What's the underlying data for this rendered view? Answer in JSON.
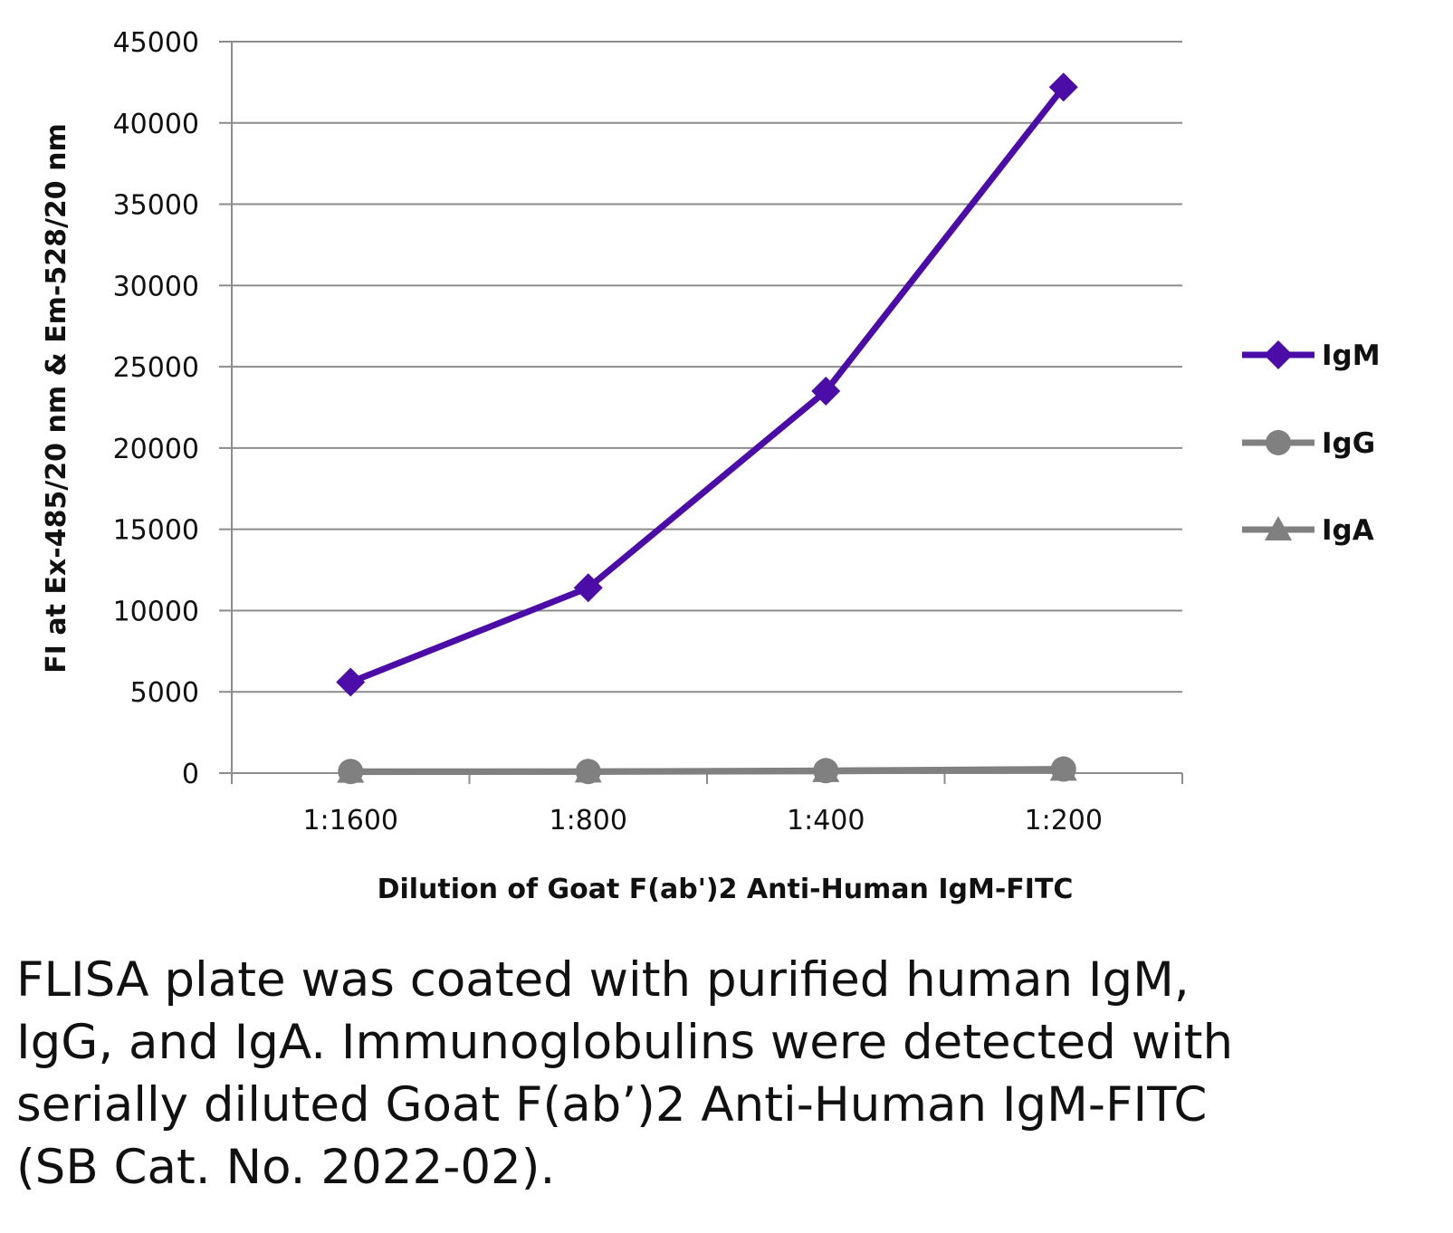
{
  "chart_data": {
    "type": "line",
    "categories": [
      "1:1600",
      "1:800",
      "1:400",
      "1:200"
    ],
    "series": [
      {
        "name": "IgM",
        "values": [
          5600,
          11400,
          23500,
          42200
        ],
        "color": "#4B0CA8",
        "marker": "diamond"
      },
      {
        "name": "IgG",
        "values": [
          100,
          100,
          150,
          250
        ],
        "color": "#808080",
        "marker": "circle"
      },
      {
        "name": "IgA",
        "values": [
          80,
          90,
          120,
          200
        ],
        "color": "#808080",
        "marker": "triangle"
      }
    ],
    "title": "",
    "xlabel": "Dilution of Goat F(ab')2 Anti-Human IgM-FITC",
    "ylabel": "FI at Ex-485/20 nm & Em-528/20 nm",
    "ylim": [
      0,
      45000
    ],
    "yticks": [
      0,
      5000,
      10000,
      15000,
      20000,
      25000,
      30000,
      35000,
      40000,
      45000
    ],
    "grid": true,
    "legend": "right"
  },
  "caption": "FLISA plate was coated with purified human IgM, IgG, and IgA.  Immunoglobulins were detected with serially diluted Goat F(ab’)2 Anti-Human IgM-FITC (SB Cat. No. 2022-02)."
}
